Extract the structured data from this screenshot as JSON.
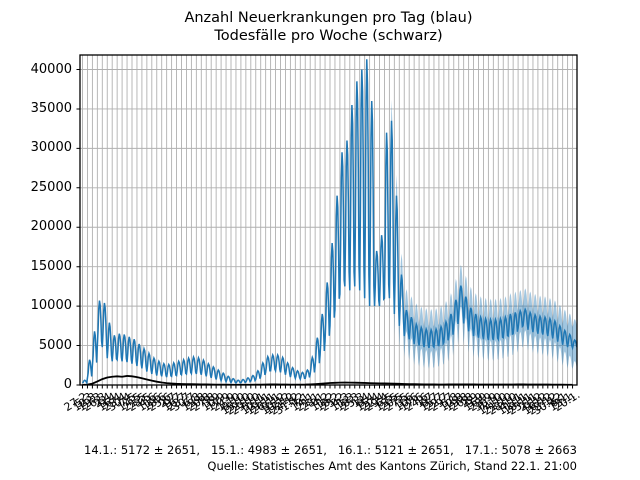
{
  "chart": {
    "title_line1": "Anzahl Neuerkrankungen pro Tag (blau)",
    "title_line2": "Todesfälle pro Woche (schwarz)"
  },
  "annotations": {
    "estimates_line": "14.1.: 5172 ± 2651,   15.1.: 4983 ± 2651,   16.1.: 5121 ± 2651,   17.1.: 5078 ± 2663",
    "source_line": "Quelle: Statistisches Amt des Kantons Zürich, Stand 22.1. 21:00",
    "estimates": [
      {
        "date": "14.1.",
        "value": 5172,
        "pm": 2651
      },
      {
        "date": "15.1.",
        "value": 4983,
        "pm": 2651
      },
      {
        "date": "16.1.",
        "value": 5121,
        "pm": 2651
      },
      {
        "date": "17.1.",
        "value": 5078,
        "pm": 2663
      }
    ]
  },
  "colors": {
    "cases_line": "#1f77b4",
    "uncertainty_band": "rgba(31,119,180,0.42)",
    "deaths_line": "#000000",
    "grid": "#b0b0b0",
    "frame": "#000000"
  },
  "chart_data": {
    "type": "line",
    "title": "Anzahl Neuerkrankungen pro Tag (blau) / Todesfälle pro Woche (schwarz)",
    "xlabel": "",
    "ylabel": "",
    "grid": true,
    "legend": "none (series identified by color in title)",
    "ylim": [
      0,
      41840
    ],
    "y_ticks": [
      0,
      5000,
      10000,
      15000,
      20000,
      25000,
      30000,
      35000,
      40000
    ],
    "x_tick_labels": [
      "27.2.",
      "5.3.",
      "12.3.",
      "19.3.",
      "26.3.",
      "2.4.",
      "9.4.",
      "16.4.",
      "23.4.",
      "30.4.",
      "7.5.",
      "14.5.",
      "21.5.",
      "28.5.",
      "4.6.",
      "11.6.",
      "18.6.",
      "25.6.",
      "2.7.",
      "9.7.",
      "16.7.",
      "23.7.",
      "30.7.",
      "6.8.",
      "13.8.",
      "20.8.",
      "27.8.",
      "3.9.",
      "10.9.",
      "17.9.",
      "24.9.",
      "1.10.",
      "8.10.",
      "15.10.",
      "22.10.",
      "29.10.",
      "5.11.",
      "12.11.",
      "19.11.",
      "26.11.",
      "3.12.",
      "10.12.",
      "17.12.",
      "24.12.",
      "31.12.",
      "7.1.",
      "14.1.",
      "21.1.",
      "28.1.",
      "4.2.",
      "11.2.",
      "18.2.",
      "25.2.",
      "4.3.",
      "11.3.",
      "18.3.",
      "25.3.",
      "1.4.",
      "8.4.",
      "15.4.",
      "22.4.",
      "29.4.",
      "6.5.",
      "13.5.",
      "20.5.",
      "27.5.",
      "3.6.",
      "10.6.",
      "17.6.",
      "24.6.",
      "1.7.",
      "8.7.",
      "15.7.",
      "22.7.",
      "29.7.",
      "5.8.",
      "12.8.",
      "19.8.",
      "26.8.",
      "2.9.",
      "9.9.",
      "16.9.",
      "23.9.",
      "30.9.",
      "7.10.",
      "14.10.",
      "21.10.",
      "28.10.",
      "4.11.",
      "11.11.",
      "18.11.",
      "25.11.",
      "2.12.",
      "9.12.",
      "16.12.",
      "23.12.",
      "30.12.",
      "6.1.",
      "13.1.",
      "20.1."
    ],
    "series": [
      {
        "name": "Anzahl Neuerkrankungen pro Tag (blau)",
        "color": "#1f77b4",
        "resolution": "daily values oscillating weekly between envelope low and high",
        "weekly_low": [
          250,
          900,
          2500,
          5000,
          4800,
          3400,
          3000,
          3200,
          3000,
          2900,
          2700,
          2400,
          2100,
          1700,
          1400,
          1200,
          1100,
          1000,
          1100,
          1200,
          1300,
          1400,
          1450,
          1400,
          1300,
          1100,
          900,
          700,
          550,
          400,
          300,
          250,
          280,
          380,
          500,
          700,
          1100,
          1600,
          1800,
          1800,
          1600,
          1300,
          1000,
          850,
          750,
          850,
          1400,
          2400,
          3800,
          5500,
          7500,
          9500,
          11500,
          12500,
          12000,
          12500,
          12000,
          11000,
          10000,
          10000,
          10000,
          11000,
          11000,
          9000,
          7500,
          6200,
          5800,
          5200,
          5000,
          4800,
          4700,
          4800,
          5000,
          5400,
          6100,
          7400,
          9000,
          7800,
          6800,
          6200,
          6000,
          5800,
          5700,
          5700,
          5800,
          6000,
          6200,
          6500,
          7200,
          7500,
          7000,
          6700,
          6500,
          6400,
          6200,
          5900,
          5500,
          5100,
          4800,
          4700
        ],
        "weekly_mid": [
          400,
          1800,
          4200,
          7800,
          7500,
          5300,
          4600,
          4800,
          4700,
          4500,
          4200,
          3800,
          3300,
          2800,
          2400,
          2100,
          1900,
          1800,
          1900,
          2100,
          2200,
          2400,
          2500,
          2400,
          2200,
          1900,
          1600,
          1300,
          1000,
          750,
          550,
          420,
          480,
          620,
          850,
          1250,
          1950,
          2600,
          2800,
          2800,
          2550,
          2050,
          1600,
          1300,
          1200,
          1400,
          2400,
          4200,
          6400,
          9200,
          12700,
          16700,
          20500,
          21700,
          23700,
          25500,
          26000,
          26100,
          23000,
          13500,
          14500,
          20000,
          21000,
          15000,
          10500,
          7800,
          7200,
          6400,
          6100,
          5900,
          5800,
          5900,
          6200,
          6700,
          7500,
          9100,
          10800,
          9500,
          8300,
          7600,
          7300,
          7100,
          7000,
          7000,
          7100,
          7300,
          7500,
          7800,
          8300,
          8600,
          8100,
          7800,
          7600,
          7500,
          7300,
          7000,
          6500,
          6000,
          5600,
          5200
        ],
        "weekly_high": [
          600,
          3200,
          6800,
          10700,
          10400,
          7900,
          6300,
          6500,
          6400,
          6100,
          5800,
          5200,
          4600,
          4000,
          3400,
          3000,
          2700,
          2600,
          2800,
          3000,
          3200,
          3400,
          3550,
          3450,
          3150,
          2700,
          2300,
          1900,
          1500,
          1100,
          800,
          600,
          700,
          900,
          1200,
          1800,
          2800,
          3600,
          3800,
          3800,
          3500,
          2800,
          2200,
          1800,
          1600,
          1900,
          3500,
          6000,
          9000,
          13000,
          18000,
          24000,
          29500,
          31000,
          35500,
          38500,
          40000,
          41300,
          36000,
          17000,
          19000,
          32000,
          33500,
          24000,
          14000,
          9500,
          8600,
          7700,
          7300,
          7100,
          7000,
          7100,
          7400,
          8000,
          9000,
          10800,
          12600,
          11200,
          9800,
          9000,
          8600,
          8400,
          8300,
          8300,
          8400,
          8600,
          9000,
          9200,
          9400,
          9600,
          9200,
          8900,
          8700,
          8600,
          8400,
          8100,
          7500,
          6900,
          6400,
          5700
        ],
        "peak_value": 41300,
        "end_value": 5078,
        "daily_pattern": [
          -1,
          -0.3,
          0.65,
          1,
          0.8,
          0.15,
          -0.8
        ]
      },
      {
        "name": "Todesfälle pro Woche (schwarz)",
        "color": "#000000",
        "resolution": "weekly",
        "weekly": [
          5,
          40,
          180,
          450,
          750,
          950,
          1050,
          1100,
          1050,
          1150,
          1100,
          1000,
          850,
          700,
          550,
          420,
          320,
          240,
          190,
          150,
          130,
          110,
          100,
          90,
          80,
          70,
          60,
          50,
          45,
          40,
          30,
          25,
          25,
          30,
          35,
          40,
          50,
          60,
          70,
          70,
          60,
          55,
          50,
          45,
          45,
          55,
          80,
          110,
          150,
          200,
          250,
          280,
          300,
          310,
          300,
          290,
          280,
          260,
          240,
          220,
          210,
          200,
          190,
          170,
          150,
          130,
          115,
          100,
          90,
          80,
          75,
          70,
          65,
          65,
          70,
          75,
          80,
          80,
          75,
          70,
          65,
          60,
          60,
          60,
          60,
          60,
          65,
          65,
          70,
          70,
          65,
          60,
          60,
          55,
          55,
          50,
          45,
          40,
          35,
          30
        ]
      }
    ],
    "uncertainty_band": {
      "applies_to": "Anzahl Neuerkrankungen pro Tag (blau)",
      "start_week_index": 62,
      "halfwidth": 2651,
      "halfwidth_last_two_weeks": 2663,
      "color": "#1f77b4",
      "opacity": 0.42
    }
  }
}
